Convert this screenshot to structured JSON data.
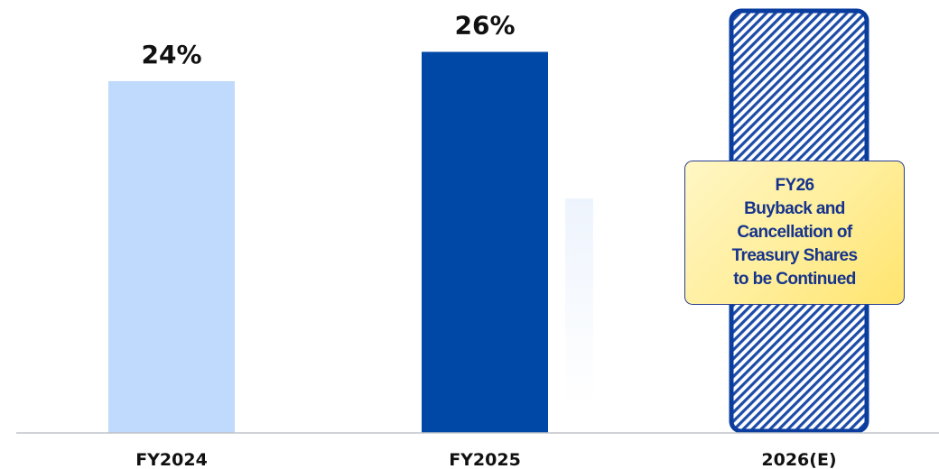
{
  "chart_data": {
    "type": "bar",
    "categories": [
      "FY2024",
      "FY2025",
      "2026(E)"
    ],
    "values": [
      24,
      26,
      null
    ],
    "value_labels": [
      "24%",
      "26%",
      ""
    ],
    "ylim": [
      0,
      30
    ],
    "grid": false,
    "colors": [
      "#bfdafc",
      "#0048a6",
      "#0a3d9e"
    ]
  },
  "callout": {
    "lines": [
      "FY26",
      "Buyback and",
      "Cancellation of",
      "Treasury Shares",
      "to be Continued"
    ]
  }
}
